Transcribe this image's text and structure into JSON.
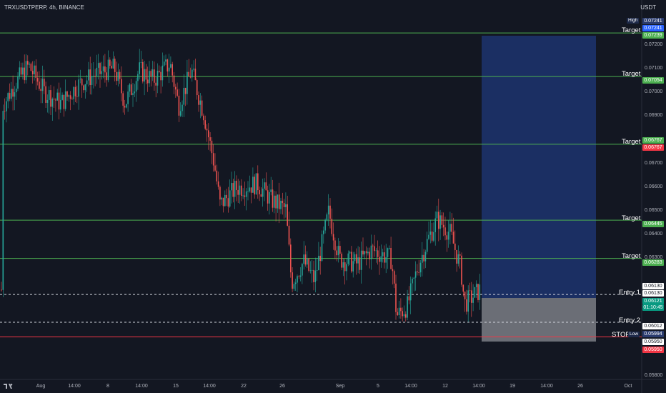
{
  "header": {
    "symbol": "TRXUSDTPERP, 4h, BINANCE",
    "currency": "USDT"
  },
  "price_axis": {
    "ticks": [
      "0.07200",
      "0.07100",
      "0.07000",
      "0.06900",
      "0.06700",
      "0.06600",
      "0.06500",
      "0.06400",
      "0.06300",
      "0.05800"
    ]
  },
  "time_axis": {
    "ticks": [
      "Aug",
      "14:00",
      "8",
      "14:00",
      "15",
      "14:00",
      "22",
      "26",
      "Sep",
      "5",
      "14:00",
      "12",
      "14:00",
      "19",
      "14:00",
      "26",
      "Oct"
    ]
  },
  "levels": [
    {
      "label": "Target",
      "price": "0.07239"
    },
    {
      "label": "Target",
      "price": "0.07054"
    },
    {
      "label": "Target",
      "price": "0.06767"
    },
    {
      "label": "Target",
      "price": "0.06445"
    },
    {
      "label": "Target",
      "price": "0.06283"
    },
    {
      "label": "Entry 1",
      "price": "0.06130"
    },
    {
      "label": "Entry 2",
      "price": "0.06012"
    },
    {
      "label": "STOPL",
      "price": "0.05950"
    }
  ],
  "price_tags": {
    "high_label": "High",
    "high": "0.07241",
    "high_value": "0.07241",
    "t1": "0.07239",
    "t2": "0.07054",
    "t3": "0.06767",
    "t3b": "0.06767",
    "t4": "0.06445",
    "t5": "0.06283",
    "e1a": "0.06130",
    "e1b": "0.06130",
    "current": "0.06121",
    "countdown": "01:10:45",
    "e2": "0.06012",
    "low_label": "Low",
    "low": "0.05994",
    "stop": "0.05950",
    "stop2": "0.05950"
  },
  "colors": {
    "target": "#4caf50",
    "stop": "#f23645",
    "reward_zone": "#1e3a78",
    "risk_zone": "#7b7e86",
    "up": "#26a69a",
    "down": "#ef5350"
  }
}
